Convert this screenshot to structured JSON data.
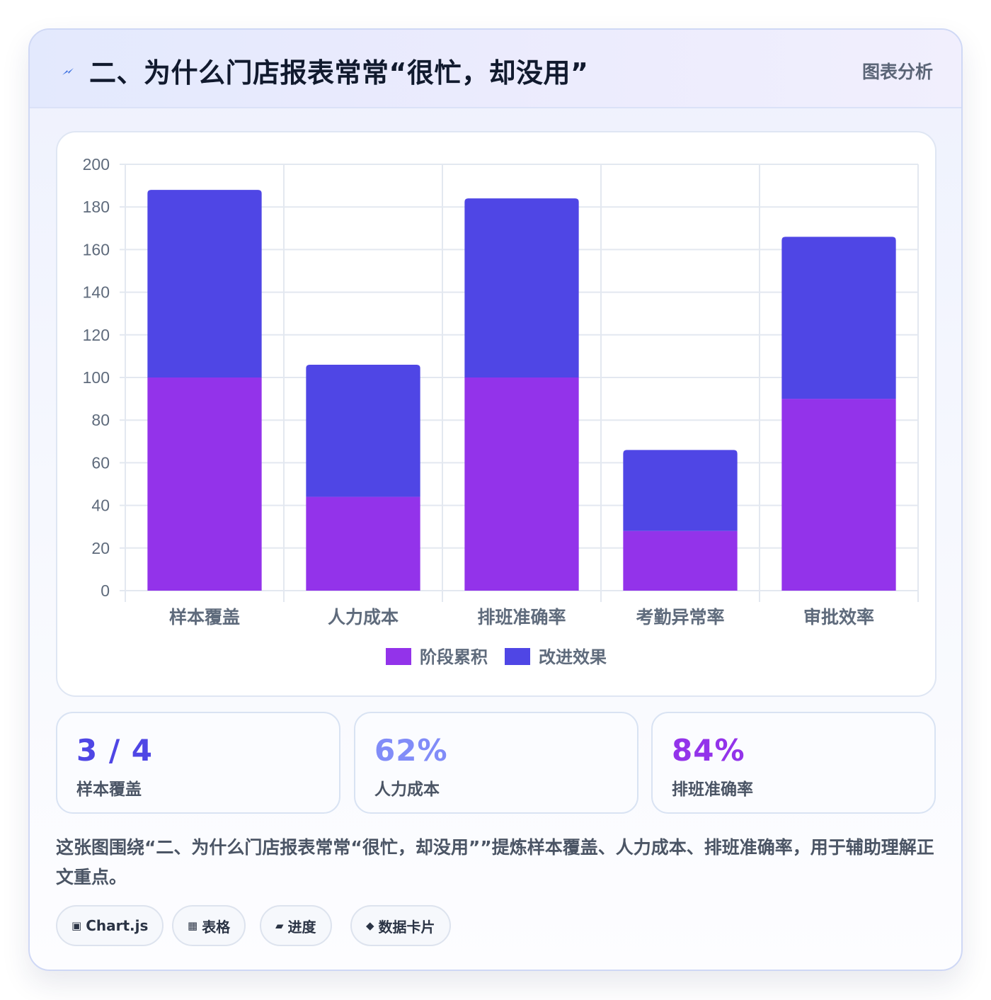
{
  "header": {
    "title": "二、为什么门店报表常常“很忙，却没用”",
    "tag": "图表分析",
    "icon": "bolt-icon"
  },
  "chart_data": {
    "type": "bar",
    "stacked": true,
    "categories": [
      "样本覆盖",
      "人力成本",
      "排班准确率",
      "考勤异常率",
      "审批效率"
    ],
    "series": [
      {
        "name": "阶段累积",
        "color": "#9333ea",
        "values": [
          100,
          44,
          100,
          28,
          90
        ]
      },
      {
        "name": "改进效果",
        "color": "#4f46e5",
        "values": [
          88,
          62,
          84,
          38,
          76
        ]
      }
    ],
    "ylim": [
      0,
      200
    ],
    "yticks": [
      0,
      20,
      40,
      60,
      80,
      100,
      120,
      140,
      160,
      180,
      200
    ],
    "grid": true,
    "legend": "bottom"
  },
  "stats": [
    {
      "value": "3 / 4",
      "label": "样本覆盖",
      "color": "#4f46e5"
    },
    {
      "value": "62%",
      "label": "人力成本",
      "color": "#818cf8"
    },
    {
      "value": "84%",
      "label": "排班准确率",
      "color": "#9333ea"
    }
  ],
  "description": "这张图围绕“二、为什么门店报表常常“很忙，却没用””提炼样本覆盖、人力成本、排班准确率，用于辅助理解正文重点。",
  "chips": [
    {
      "icon": "▣",
      "label": "Chart.js"
    },
    {
      "icon": "▦",
      "label": "表格"
    },
    {
      "icon": "▰",
      "label": "进度"
    },
    {
      "icon": "◆",
      "label": "数据卡片"
    }
  ]
}
